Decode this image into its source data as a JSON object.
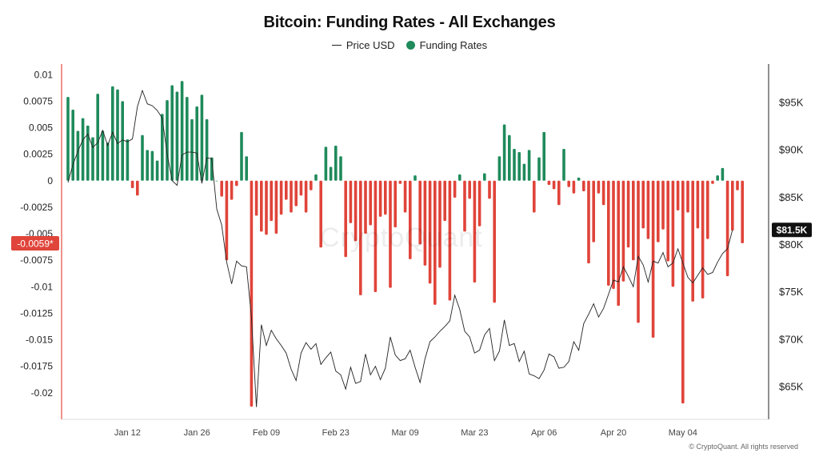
{
  "title": "Bitcoin: Funding Rates - All Exchanges",
  "legend": {
    "price_label": "Price USD",
    "funding_label": "Funding Rates"
  },
  "watermark": "CryptoQuant",
  "credit": "© CryptoQuant. All rights reserved",
  "colors": {
    "positive": "#1f8a5b",
    "negative": "#e0443a",
    "price_line": "#222222",
    "current_price_badge": "#111111",
    "current_rate_badge": "#e0443a"
  },
  "chart_data": {
    "type": "bar",
    "title": "Bitcoin: Funding Rates - All Exchanges",
    "x_ticks": [
      "Jan 12",
      "Jan 26",
      "Feb 09",
      "Feb 23",
      "Mar 09",
      "Mar 23",
      "Apr 06",
      "Apr 20",
      "May 04"
    ],
    "left_axis": {
      "ticks": [
        "0.01",
        "0.0075",
        "0.005",
        "0.0025",
        "0",
        "-0.0025",
        "-0.005",
        "-0.0075",
        "-0.01",
        "-0.0125",
        "-0.015",
        "-0.0175",
        "-0.02"
      ],
      "ylim": [
        -0.0225,
        0.011
      ]
    },
    "right_axis": {
      "ticks": [
        "$95K",
        "$90K",
        "$85K",
        "$80K",
        "$75K",
        "$70K",
        "$65K"
      ],
      "ylim": [
        61500,
        99000
      ]
    },
    "current_price_label": "$81.5K",
    "current_rate_label": "-0.0059*",
    "series": [
      {
        "name": "Funding Rates",
        "values": [
          0.0079,
          0.0067,
          0.0047,
          0.0059,
          0.0052,
          0.0041,
          0.0082,
          0.0047,
          0.0036,
          0.0089,
          0.0086,
          0.0075,
          0.0039,
          -0.0007,
          -0.0014,
          0.0043,
          0.0029,
          0.0028,
          0.0019,
          0.0063,
          0.0076,
          0.009,
          0.0084,
          0.0094,
          0.0079,
          0.0058,
          0.007,
          0.0081,
          0.0058,
          0.0022,
          0.0,
          -0.0015,
          -0.0075,
          -0.0018,
          -0.0005,
          0.0046,
          0.0023,
          -0.0213,
          -0.0033,
          -0.0048,
          -0.0051,
          -0.0038,
          -0.005,
          -0.0032,
          -0.0018,
          -0.003,
          -0.0024,
          -0.0014,
          -0.003,
          -0.0009,
          0.0006,
          -0.0063,
          0.0032,
          0.0013,
          0.0033,
          0.0023,
          -0.0072,
          -0.004,
          -0.0057,
          -0.0108,
          -0.005,
          -0.0042,
          -0.0105,
          -0.0034,
          -0.0032,
          -0.0101,
          -0.0044,
          -0.0003,
          -0.003,
          -0.0074,
          0.0005,
          -0.006,
          -0.008,
          -0.0097,
          -0.0117,
          -0.0082,
          -0.0038,
          -0.0113,
          -0.0016,
          0.0006,
          -0.0048,
          -0.0017,
          -0.0096,
          -0.0043,
          0.0007,
          -0.0017,
          -0.0115,
          0.0023,
          0.0053,
          0.0043,
          0.003,
          0.0027,
          0.0016,
          0.0029,
          -0.003,
          0.0022,
          0.0046,
          -0.0004,
          -0.0008,
          -0.0023,
          0.003,
          -0.0006,
          -0.0012,
          0.0003,
          -0.001,
          -0.0078,
          -0.0058,
          -0.0012,
          -0.0023,
          -0.0099,
          -0.0102,
          -0.0118,
          -0.0095,
          -0.0063,
          -0.0075,
          -0.0134,
          -0.0045,
          -0.0055,
          -0.0148,
          -0.0058,
          -0.0046,
          -0.0076,
          -0.01,
          -0.0028,
          -0.021,
          -0.003,
          -0.0114,
          -0.0045,
          -0.0111,
          -0.0055,
          -0.0003,
          0.0005,
          0.0012,
          -0.009,
          -0.0047,
          -0.0009,
          -0.0059
        ]
      },
      {
        "name": "Price USD",
        "values": [
          86500,
          88400,
          89800,
          91000,
          91600,
          90200,
          90700,
          92000,
          90400,
          91800,
          90600,
          91000,
          90800,
          91100,
          94500,
          96200,
          94800,
          94600,
          94100,
          93300,
          89500,
          86700,
          86200,
          89400,
          89700,
          89700,
          89600,
          86400,
          89100,
          89000,
          83700,
          82000,
          78100,
          75800,
          78200,
          77700,
          77600,
          72300,
          62800,
          71500,
          69300,
          70900,
          70000,
          69300,
          68500,
          66800,
          65600,
          68500,
          69600,
          68900,
          69500,
          67300,
          68000,
          68600,
          66600,
          66200,
          64700,
          67000,
          65300,
          65500,
          68400,
          66200,
          67100,
          65700,
          66900,
          70200,
          68300,
          67700,
          67900,
          68800,
          67000,
          65400,
          67900,
          69700,
          70200,
          70800,
          71300,
          71900,
          74600,
          73100,
          70800,
          70200,
          68500,
          68800,
          70400,
          71100,
          67700,
          68700,
          72000,
          69300,
          69500,
          67600,
          68700,
          66300,
          66100,
          65800,
          66700,
          68400,
          68100,
          66900,
          67000,
          67600,
          69700,
          68800,
          71600,
          72600,
          73700,
          72300,
          73200,
          74700,
          76200,
          76000,
          77600,
          76600,
          75500,
          78700,
          77800,
          76000,
          78200,
          78000,
          79100,
          77600,
          78000,
          79500,
          78000,
          76500,
          75900,
          76700,
          77500,
          76800,
          77000,
          78100,
          79000,
          79500,
          81500
        ]
      }
    ]
  }
}
